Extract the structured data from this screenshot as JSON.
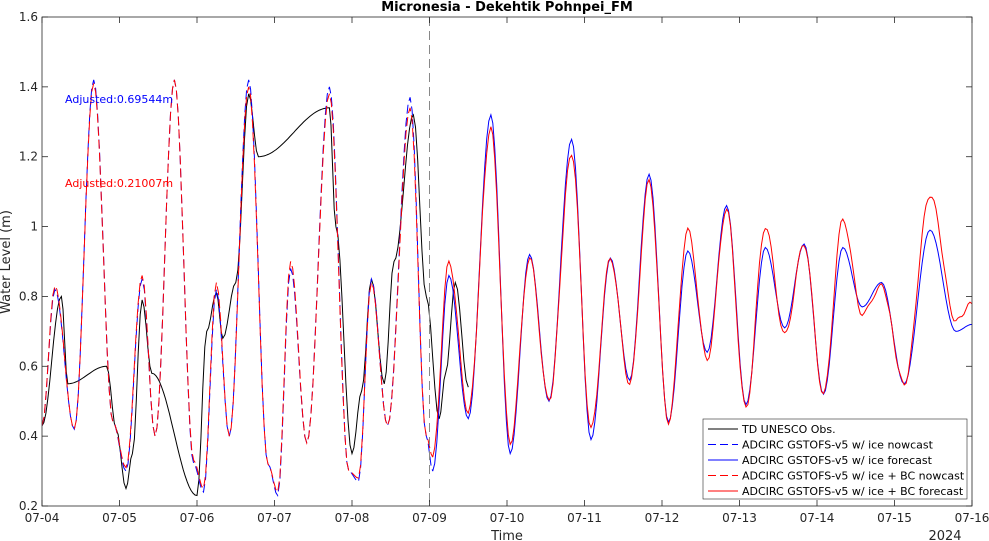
{
  "chart_data": {
    "type": "line",
    "title": "Micronesia - Dekehtik Pohnpei_FM",
    "xlabel": "Time",
    "ylabel": "Water Level (m)",
    "year_label": "2024",
    "xlim": [
      "07-04",
      "07-16"
    ],
    "ylim": [
      0.2,
      1.6
    ],
    "x_ticks": [
      "07-04",
      "07-05",
      "07-06",
      "07-07",
      "07-08",
      "07-09",
      "07-10",
      "07-11",
      "07-12",
      "07-13",
      "07-14",
      "07-15",
      "07-16"
    ],
    "y_ticks": [
      0.2,
      0.4,
      0.6,
      0.8,
      1.0,
      1.2,
      1.4,
      1.6
    ],
    "y_tick_labels": [
      "0.2",
      "0.4",
      "0.6",
      "0.8",
      "1",
      "1.2",
      "1.4",
      "1.6"
    ],
    "nowcast_forecast_boundary": "07-09",
    "grid": false,
    "legend_position": "bottom-right",
    "annotations": [
      {
        "text": "Adjusted:0.69544m",
        "color": "#0000ff"
      },
      {
        "text": "Adjusted:0.21007m",
        "color": "#ff0000"
      }
    ],
    "series": [
      {
        "name": "TD UNESCO Obs.",
        "color": "#000000",
        "dash": "solid",
        "points": [
          [
            "07-04 00:00",
            0.43
          ],
          [
            "07-04 06:00",
            0.8
          ],
          [
            "07-04 08:00",
            0.55
          ],
          [
            "07-04 20:00",
            0.6
          ],
          [
            "07-04 23:00",
            0.42
          ],
          [
            "07-05 02:00",
            0.25
          ],
          [
            "07-05 04:00",
            0.35
          ],
          [
            "07-05 07:00",
            0.79
          ],
          [
            "07-05 10:00",
            0.58
          ],
          [
            "07-06 00:00",
            0.23
          ],
          [
            "07-06 03:00",
            0.7
          ],
          [
            "07-06 06:00",
            0.81
          ],
          [
            "07-06 08:00",
            0.68
          ],
          [
            "07-06 12:00",
            0.84
          ],
          [
            "07-06 16:00",
            1.38
          ],
          [
            "07-06 19:00",
            1.2
          ],
          [
            "07-07 17:00",
            1.34
          ],
          [
            "07-07 19:00",
            1.0
          ],
          [
            "07-08 00:00",
            0.35
          ],
          [
            "07-08 03:00",
            0.53
          ],
          [
            "07-08 06:00",
            0.85
          ],
          [
            "07-08 10:00",
            0.55
          ],
          [
            "07-08 13:00",
            0.9
          ],
          [
            "07-08 19:00",
            1.32
          ],
          [
            "07-08 23:00",
            0.8
          ],
          [
            "07-09 03:00",
            0.45
          ],
          [
            "07-09 05:00",
            0.58
          ],
          [
            "07-09 08:00",
            0.84
          ],
          [
            "07-09 12:00",
            0.54
          ]
        ]
      },
      {
        "name": "ADCIRC GSTOFS-v5 w/ ice nowcast",
        "color": "#0000ff",
        "dash": "dashed",
        "points": [
          [
            "07-04 00:00",
            0.43
          ],
          [
            "07-04 04:00",
            0.82
          ],
          [
            "07-04 10:00",
            0.42
          ],
          [
            "07-04 16:00",
            1.42
          ],
          [
            "07-04 22:00",
            0.44
          ],
          [
            "07-05 02:00",
            0.3
          ],
          [
            "07-05 07:00",
            0.85
          ],
          [
            "07-05 11:00",
            0.4
          ],
          [
            "07-05 17:00",
            1.42
          ],
          [
            "07-05 23:00",
            0.32
          ],
          [
            "07-06 02:00",
            0.24
          ],
          [
            "07-06 06:00",
            0.82
          ],
          [
            "07-06 10:00",
            0.4
          ],
          [
            "07-06 16:00",
            1.42
          ],
          [
            "07-06 22:00",
            0.32
          ],
          [
            "07-07 01:00",
            0.23
          ],
          [
            "07-07 05:00",
            0.88
          ],
          [
            "07-07 10:00",
            0.38
          ],
          [
            "07-07 17:00",
            1.4
          ],
          [
            "07-07 23:00",
            0.3
          ],
          [
            "07-08 02:00",
            0.27
          ],
          [
            "07-08 06:00",
            0.85
          ],
          [
            "07-08 11:00",
            0.43
          ],
          [
            "07-08 18:00",
            1.37
          ],
          [
            "07-08 23:00",
            0.4
          ],
          [
            "07-09 01:00",
            0.3
          ]
        ]
      },
      {
        "name": "ADCIRC GSTOFS-v5 w/ ice forecast",
        "color": "#0000ff",
        "dash": "solid",
        "points": [
          [
            "07-09 01:00",
            0.3
          ],
          [
            "07-09 06:00",
            0.86
          ],
          [
            "07-09 12:00",
            0.45
          ],
          [
            "07-09 19:00",
            1.32
          ],
          [
            "07-10 01:00",
            0.35
          ],
          [
            "07-10 07:00",
            0.92
          ],
          [
            "07-10 13:00",
            0.5
          ],
          [
            "07-10 20:00",
            1.25
          ],
          [
            "07-11 02:00",
            0.39
          ],
          [
            "07-11 08:00",
            0.91
          ],
          [
            "07-11 14:00",
            0.56
          ],
          [
            "07-11 20:00",
            1.15
          ],
          [
            "07-12 02:00",
            0.44
          ],
          [
            "07-12 08:00",
            0.93
          ],
          [
            "07-12 14:00",
            0.64
          ],
          [
            "07-12 20:00",
            1.06
          ],
          [
            "07-13 02:00",
            0.49
          ],
          [
            "07-13 08:00",
            0.94
          ],
          [
            "07-13 14:00",
            0.71
          ],
          [
            "07-13 20:00",
            0.95
          ],
          [
            "07-14 02:00",
            0.52
          ],
          [
            "07-14 08:00",
            0.94
          ],
          [
            "07-14 14:00",
            0.77
          ],
          [
            "07-14 20:00",
            0.84
          ],
          [
            "07-15 03:00",
            0.55
          ],
          [
            "07-15 11:00",
            0.99
          ],
          [
            "07-15 19:00",
            0.7
          ],
          [
            "07-16 00:00",
            0.72
          ]
        ]
      },
      {
        "name": "ADCIRC GSTOFS-v5 w/ ice + BC nowcast",
        "color": "#ff0000",
        "dash": "dashed",
        "points": [
          [
            "07-04 00:00",
            0.43
          ],
          [
            "07-04 04:00",
            0.83
          ],
          [
            "07-04 10:00",
            0.42
          ],
          [
            "07-04 16:00",
            1.41
          ],
          [
            "07-04 22:00",
            0.44
          ],
          [
            "07-05 02:00",
            0.31
          ],
          [
            "07-05 07:00",
            0.86
          ],
          [
            "07-05 11:00",
            0.4
          ],
          [
            "07-05 17:00",
            1.42
          ],
          [
            "07-05 23:00",
            0.33
          ],
          [
            "07-06 02:00",
            0.25
          ],
          [
            "07-06 06:00",
            0.84
          ],
          [
            "07-06 10:00",
            0.4
          ],
          [
            "07-06 16:00",
            1.4
          ],
          [
            "07-06 22:00",
            0.32
          ],
          [
            "07-07 01:00",
            0.24
          ],
          [
            "07-07 05:00",
            0.9
          ],
          [
            "07-07 10:00",
            0.38
          ],
          [
            "07-07 17:00",
            1.38
          ],
          [
            "07-07 23:00",
            0.3
          ],
          [
            "07-08 02:00",
            0.28
          ],
          [
            "07-08 06:00",
            0.84
          ],
          [
            "07-08 11:00",
            0.43
          ],
          [
            "07-08 18:00",
            1.34
          ],
          [
            "07-08 23:00",
            0.4
          ],
          [
            "07-09 01:00",
            0.34
          ]
        ]
      },
      {
        "name": "ADCIRC GSTOFS-v5 w/ ice + BC forecast",
        "color": "#ff0000",
        "dash": "solid",
        "points": [
          [
            "07-09 01:00",
            0.34
          ],
          [
            "07-09 06:00",
            0.9
          ],
          [
            "07-09 12:00",
            0.47
          ],
          [
            "07-09 19:00",
            1.28
          ],
          [
            "07-10 01:00",
            0.38
          ],
          [
            "07-10 07:00",
            0.91
          ],
          [
            "07-10 13:00",
            0.5
          ],
          [
            "07-10 20:00",
            1.21
          ],
          [
            "07-11 02:00",
            0.42
          ],
          [
            "07-11 08:00",
            0.91
          ],
          [
            "07-11 14:00",
            0.55
          ],
          [
            "07-11 20:00",
            1.13
          ],
          [
            "07-12 02:00",
            0.44
          ],
          [
            "07-12 08:00",
            0.99
          ],
          [
            "07-12 14:00",
            0.62
          ],
          [
            "07-12 20:00",
            1.05
          ],
          [
            "07-13 02:00",
            0.48
          ],
          [
            "07-13 08:00",
            1.0
          ],
          [
            "07-13 14:00",
            0.69
          ],
          [
            "07-13 20:00",
            0.95
          ],
          [
            "07-14 02:00",
            0.52
          ],
          [
            "07-14 08:00",
            1.02
          ],
          [
            "07-14 14:00",
            0.75
          ],
          [
            "07-14 20:00",
            0.83
          ],
          [
            "07-15 03:00",
            0.55
          ],
          [
            "07-15 11:00",
            1.09
          ],
          [
            "07-15 19:00",
            0.73
          ],
          [
            "07-16 00:00",
            0.78
          ]
        ]
      }
    ]
  }
}
